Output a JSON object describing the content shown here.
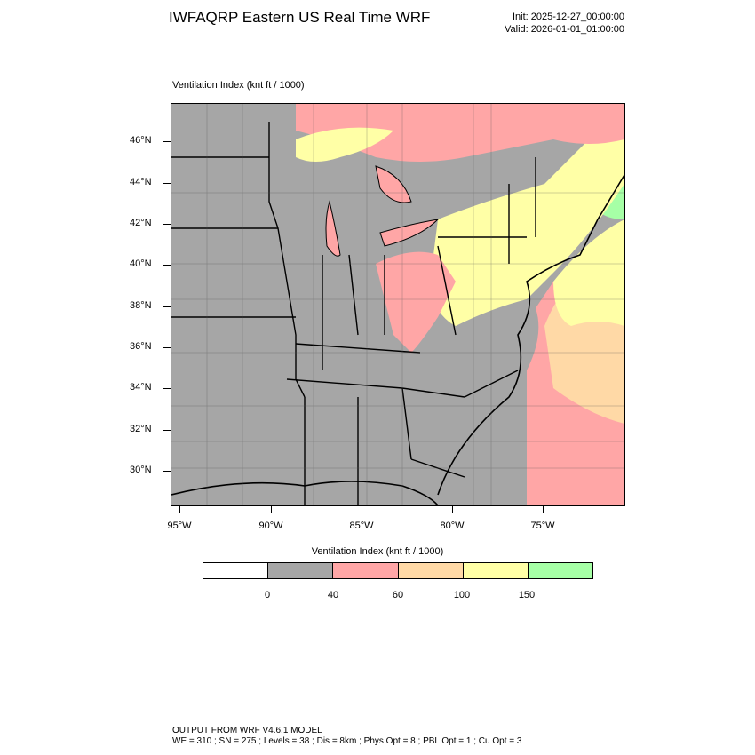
{
  "header": {
    "title": "IWFAQRP Eastern US Real Time WRF",
    "init": "Init: 2025-12-27_00:00:00",
    "valid": "Valid: 2026-01-01_01:00:00"
  },
  "map": {
    "field_label": "Ventilation Index   (knt ft / 1000)",
    "lat_labels": [
      "46°N",
      "44°N",
      "42°N",
      "40°N",
      "38°N",
      "36°N",
      "34°N",
      "32°N",
      "30°N"
    ],
    "lon_labels": [
      "95°W",
      "90°W",
      "85°W",
      "80°W",
      "75°W"
    ]
  },
  "colorbar": {
    "title": "Ventilation Index  (knt ft / 1000)",
    "labels": [
      "0",
      "40",
      "60",
      "100",
      "150"
    ],
    "colors": [
      "#ffffff",
      "#a6a6a6",
      "#ffa6a6",
      "#ffd9a6",
      "#ffffa6",
      "#a6ffa6"
    ]
  },
  "footer": {
    "line1": "OUTPUT FROM WRF V4.6.1 MODEL",
    "line2": "WE = 310 ; SN = 275 ; Levels = 38 ; Dis = 8km ; Phys Opt = 8 ; PBL Opt = 1 ; Cu Opt = 3"
  },
  "legend_colors": {
    "below_0": "#ffffff",
    "0_40": "#a6a6a6",
    "40_60": "#ffa6a6",
    "60_100": "#ffd9a6",
    "100_150": "#ffffa6",
    "above_150": "#a6ffa6"
  }
}
